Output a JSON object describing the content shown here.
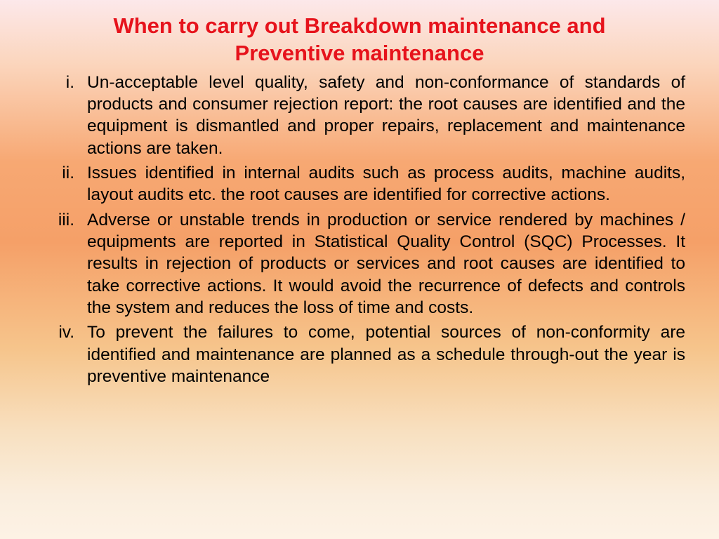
{
  "title": "When to carry out Breakdown maintenance and Preventive maintenance",
  "title_color": "#e6131c",
  "title_fontsize": 31,
  "body_color": "#000000",
  "body_fontsize": 24.5,
  "background_gradient": [
    "#fce8ea",
    "#fbd5bc",
    "#f7a873",
    "#f5a068",
    "#f6c58c",
    "#f8e0c0",
    "#faeede",
    "#fdf2e5"
  ],
  "list_style": "lower-roman",
  "items": [
    "Un-acceptable level quality, safety and non-conformance of standards of products and consumer rejection report: the root causes are identified and the equipment is dismantled and proper repairs, replacement and maintenance actions are taken.",
    "Issues identified in internal audits such as process audits, machine audits, layout audits etc. the root causes are identified for corrective actions.",
    "Adverse or unstable trends in production or service rendered by machines / equipments are reported in Statistical Quality Control (SQC) Processes. It results in rejection of products or services and root causes are identified to take corrective actions. It would avoid the recurrence of defects and controls the system and reduces the loss of time and costs.",
    "To prevent the failures to come, potential sources of non-conformity are identified and maintenance are planned as a schedule through-out the year is preventive maintenance"
  ]
}
